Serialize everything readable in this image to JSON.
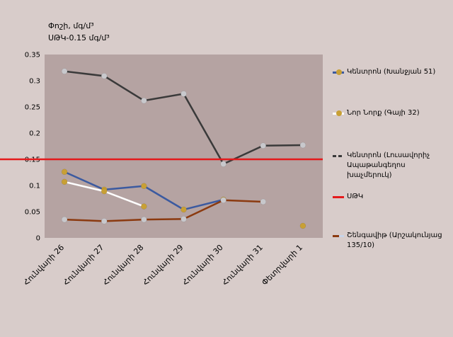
{
  "title_lines": [
    "Փոշի, մգ/մ³",
    "ՍԹԿ-0.15 մգ/մ³"
  ],
  "colors": {
    "plot_bg": "#b5a3a2",
    "page_bg": "#d8ccca",
    "marker_gold": "#c8a035",
    "marker_grey": "#c8c8cc",
    "series_blue": "#3b5aa0",
    "series_white": "#ffffff",
    "series_dark": "#3a3a3a",
    "limit_red": "#e41a1c",
    "series_brown": "#8b3a10"
  },
  "chart_data": {
    "type": "line",
    "categories": [
      "Հունվարի 26",
      "Հունվարի 27",
      "Հունվարի 28",
      "Հունվարի 29",
      "Հունվարի 30",
      "Հունվարի 31",
      "Փետրվարի 1"
    ],
    "ylim": [
      0,
      0.35
    ],
    "yticks": [
      "0",
      "0.05",
      "0.1",
      "0.15",
      "0.2",
      "0.25",
      "0.3",
      "0.35"
    ],
    "ytick_values": [
      0,
      0.05,
      0.1,
      0.15,
      0.2,
      0.25,
      0.3,
      0.35
    ],
    "grid": false,
    "legend_position": "right",
    "series": [
      {
        "name": "Կենտրոն (Խանջյան 51)",
        "color": "#3b5aa0",
        "marker": "#c8a035",
        "values": [
          0.126,
          0.092,
          0.099,
          0.054,
          0.073,
          null,
          null
        ]
      },
      {
        "name": "Նոր Նորք (Գայի 32)",
        "color": "#ffffff",
        "marker": "#c8a035",
        "values": [
          0.107,
          0.089,
          0.06,
          null,
          null,
          null,
          0.023
        ]
      },
      {
        "name": "Կենտրոն (Լուսավորիչ Ապաթանգեղոս խաչմերուկ)",
        "color": "#3a3a3a",
        "marker": "#c8c8cc",
        "values": [
          0.318,
          0.309,
          0.262,
          0.275,
          0.141,
          0.176,
          0.177
        ]
      },
      {
        "name": "ՍԹԿ",
        "color": "#e41a1c",
        "marker": null,
        "values": [
          0.15,
          0.15,
          0.15,
          0.15,
          0.15,
          0.15,
          0.15
        ]
      },
      {
        "name": "Շենգավիթ (Արշակունյաց 135/10)",
        "color": "#8b3a10",
        "marker": "#c8c8cc",
        "values": [
          0.035,
          0.032,
          0.035,
          0.036,
          0.072,
          0.069,
          null
        ]
      }
    ]
  }
}
